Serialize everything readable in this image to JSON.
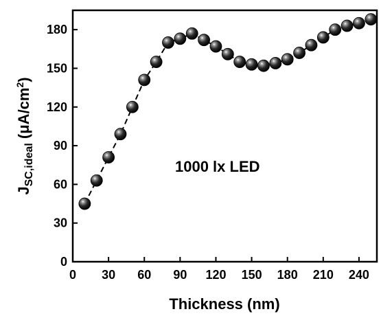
{
  "chart_data": {
    "type": "scatter",
    "xlabel": "Thickness (nm)",
    "ylabel": {
      "main": "J",
      "sub": "SC,ideal",
      "unit_prefix": " (μA/cm",
      "unit_sup": "2",
      "unit_suffix": ")"
    },
    "annotation": "1000 lx LED",
    "xlim": [
      0,
      255
    ],
    "ylim": [
      0,
      195
    ],
    "xticks": [
      0,
      30,
      60,
      90,
      120,
      150,
      180,
      210,
      240
    ],
    "yticks": [
      0,
      30,
      60,
      90,
      120,
      150,
      180
    ],
    "grid": false,
    "legend": "none",
    "marker": "sphere",
    "line_style": "dashed",
    "marker_color": "#000000",
    "line_color": "#000000",
    "series": [
      {
        "x": [
          10,
          20,
          30,
          40,
          50,
          60,
          70,
          80,
          90,
          100,
          110,
          120,
          130,
          140,
          150,
          160,
          170,
          180,
          190,
          200,
          210,
          220,
          230,
          240,
          250
        ],
        "y": [
          45,
          63,
          81,
          99,
          120,
          141,
          155,
          170,
          173,
          177,
          172,
          167,
          161,
          155,
          153,
          152,
          154,
          157,
          162,
          168,
          174,
          180,
          183,
          185,
          188
        ]
      }
    ]
  }
}
